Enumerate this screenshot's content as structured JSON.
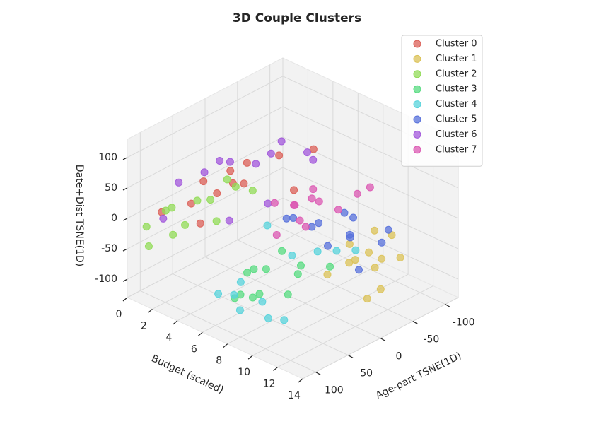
{
  "chart_data": {
    "type": "scatter3d",
    "title": "3D Couple Clusters",
    "xlabel": "Budget (scaled)",
    "ylabel": "Age-part TSNE(1D)",
    "zlabel": "Date+Dist TSNE(1D)",
    "xlim": [
      0,
      14
    ],
    "ylim": [
      -120,
      120
    ],
    "zlim": [
      -130,
      130
    ],
    "xticks": [
      0,
      2,
      4,
      6,
      8,
      10,
      12,
      14
    ],
    "yticks": [
      -100,
      -50,
      0,
      50,
      100
    ],
    "zticks": [
      -100,
      -50,
      0,
      50,
      100
    ],
    "grid": true,
    "legend": "upper right",
    "series": [
      {
        "name": "Cluster 0",
        "color": "#db5f57",
        "x": [
          1.2,
          2.0,
          2.5,
          3.1,
          1.8,
          2.8,
          4.0,
          3.5,
          1.5,
          2.2,
          4.5,
          3.0
        ],
        "y": [
          90,
          60,
          30,
          0,
          -30,
          -60,
          -90,
          75,
          -10,
          45,
          -50,
          15
        ],
        "z": [
          5,
          10,
          15,
          20,
          25,
          30,
          35,
          0,
          20,
          40,
          -5,
          28
        ]
      },
      {
        "name": "Cluster 1",
        "color": "#dbc257",
        "x": [
          10.5,
          11,
          11.5,
          12,
          12.5,
          13,
          13.5,
          10.8,
          11.8,
          12.8,
          13.2,
          11.2
        ],
        "y": [
          -20,
          -40,
          0,
          -30,
          10,
          -50,
          -10,
          20,
          -60,
          -25,
          5,
          -45
        ],
        "z": [
          -20,
          -40,
          -30,
          -50,
          -10,
          -35,
          -60,
          -45,
          -15,
          -25,
          -70,
          -5
        ]
      },
      {
        "name": "Cluster 2",
        "color": "#91db57",
        "x": [
          0.5,
          1.0,
          1.5,
          2.0,
          2.5,
          3.0,
          3.5,
          4.0,
          1.2,
          2.8,
          0.8,
          3.8
        ],
        "y": [
          100,
          80,
          60,
          90,
          40,
          70,
          50,
          30,
          110,
          20,
          65,
          0
        ],
        "z": [
          -20,
          0,
          -30,
          20,
          10,
          30,
          -10,
          40,
          -40,
          35,
          -50,
          15
        ]
      },
      {
        "name": "Cluster 3",
        "color": "#57db80",
        "x": [
          7,
          7.5,
          8,
          8.5,
          9,
          9.5,
          10,
          10.5,
          8.2,
          9.2,
          7.8,
          11
        ],
        "y": [
          60,
          80,
          100,
          70,
          90,
          110,
          50,
          75,
          40,
          30,
          105,
          20
        ],
        "z": [
          -50,
          -40,
          -60,
          -30,
          -55,
          -45,
          -35,
          -50,
          -20,
          -40,
          -65,
          -30
        ]
      },
      {
        "name": "Cluster 4",
        "color": "#57d3db",
        "x": [
          7,
          8,
          9,
          10,
          11,
          12,
          8.5,
          9.5,
          10.5,
          11.5,
          7.5,
          6
        ],
        "y": [
          115,
          110,
          120,
          105,
          115,
          110,
          30,
          10,
          0,
          -10,
          90,
          20
        ],
        "z": [
          -60,
          -55,
          -65,
          -50,
          -62,
          -58,
          -30,
          -25,
          -20,
          -15,
          -50,
          -10
        ]
      },
      {
        "name": "Cluster 5",
        "color": "#5770db",
        "x": [
          6,
          7,
          8,
          9,
          10,
          11,
          6.5,
          7.5,
          8.5,
          9.5,
          10.5,
          11.5
        ],
        "y": [
          -20,
          -40,
          -10,
          -50,
          -30,
          -60,
          0,
          -70,
          -25,
          -45,
          -80,
          -15
        ],
        "z": [
          -20,
          -30,
          -10,
          -40,
          -15,
          -35,
          -5,
          -25,
          -45,
          0,
          -30,
          -50
        ]
      },
      {
        "name": "Cluster 6",
        "color": "#a157db",
        "x": [
          1,
          1.5,
          2,
          2.5,
          3,
          3.5,
          4,
          4.5,
          0.8,
          2.2,
          3.2,
          5
        ],
        "y": [
          60,
          30,
          0,
          -30,
          -60,
          -90,
          40,
          -10,
          80,
          20,
          -40,
          -70
        ],
        "z": [
          35,
          40,
          45,
          30,
          55,
          25,
          -10,
          -5,
          -15,
          60,
          48,
          38
        ]
      },
      {
        "name": "Cluster 7",
        "color": "#db57b2",
        "x": [
          4,
          4.5,
          5,
          5.5,
          6,
          6.5,
          7,
          7.5,
          5.2,
          6.2,
          8,
          3.8
        ],
        "y": [
          -30,
          -50,
          -70,
          -40,
          -60,
          -80,
          -20,
          -90,
          -10,
          -45,
          -100,
          -65
        ],
        "z": [
          -20,
          -30,
          -10,
          -40,
          -15,
          -35,
          -25,
          -5,
          -50,
          0,
          5,
          -45
        ]
      }
    ]
  }
}
